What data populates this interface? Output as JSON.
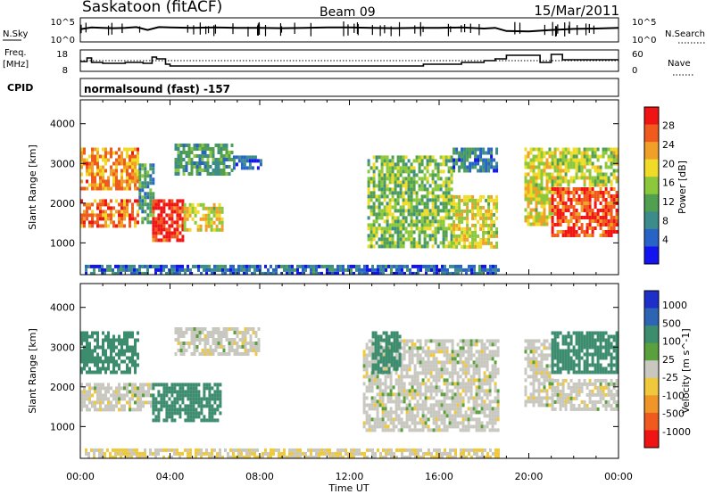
{
  "header": {
    "station": "Saskatoon (fitACF)",
    "beam": "Beam 09",
    "date": "15/Mar/2011"
  },
  "noise_panel": {
    "left_label": "N.Sky",
    "left_ticks": [
      "10^5",
      "10^0"
    ],
    "right_label": "N.Search",
    "right_ticks": [
      "10^5",
      "10^0"
    ]
  },
  "freq_panel": {
    "left_label_1": "Freq.",
    "left_label_2": "[MHz]",
    "left_ticks": [
      "18",
      "8"
    ],
    "right_label": "Nave",
    "right_ticks": [
      "60",
      "0"
    ]
  },
  "cpid": {
    "label": "CPID",
    "value": "normalsound (fast) -157"
  },
  "x_axis": {
    "label": "Time UT",
    "ticks": [
      "00:00",
      "04:00",
      "08:00",
      "12:00",
      "16:00",
      "20:00",
      "00:00"
    ]
  },
  "chart_data": [
    {
      "type": "line",
      "title": "",
      "x_hours": [
        0,
        0.5,
        1,
        1.5,
        2,
        2.5,
        3,
        3.5,
        4,
        5,
        6,
        7,
        8,
        9,
        10,
        11,
        12,
        13,
        14,
        15,
        16,
        17,
        18,
        18.5,
        19,
        20,
        21,
        22,
        23,
        24
      ],
      "series": [
        {
          "name": "N.Sky",
          "values_log10": [
            2.8,
            3.3,
            3.2,
            3.1,
            3.2,
            3.4,
            2.6,
            3.4,
            3.3,
            3.2,
            3.3,
            3.2,
            3.2,
            3.1,
            3.2,
            3.3,
            3.3,
            3.2,
            3.1,
            3.2,
            3.2,
            3.3,
            3.0,
            3.2,
            2.3,
            2.2,
            2.6,
            2.9,
            3.0,
            3.2
          ]
        }
      ],
      "ylim_log10": [
        0,
        5
      ]
    },
    {
      "type": "line",
      "title": "",
      "x_hours": [
        0,
        0.3,
        0.5,
        1,
        2,
        2.8,
        3.2,
        3.4,
        3.8,
        4,
        8,
        12,
        15,
        15.3,
        16,
        16.5,
        17,
        18,
        18.5,
        19,
        20,
        20.5,
        21,
        21.5,
        22,
        22.5,
        23,
        24
      ],
      "series": [
        {
          "name": "Freq.",
          "values_MHz": [
            12.5,
            14.5,
            12,
            11.5,
            12,
            11.5,
            15,
            14,
            11,
            10,
            10,
            10,
            10,
            11,
            11,
            11,
            12,
            13,
            14,
            16,
            16,
            12,
            16.5,
            13.5,
            13.5,
            13.5,
            13.5,
            13.5
          ]
        },
        {
          "name": "Nave",
          "values": [
            30,
            30,
            30,
            30,
            30,
            30,
            30,
            30,
            30,
            30,
            30,
            30,
            30,
            30,
            30,
            30,
            30,
            30,
            30,
            30,
            30,
            30,
            30,
            30,
            30,
            30,
            30,
            30
          ]
        }
      ],
      "ylim_MHz": [
        8,
        18
      ],
      "ylim_nave": [
        0,
        60
      ]
    },
    {
      "type": "heatmap",
      "quantity": "Power",
      "xlim_hours": [
        0,
        24
      ],
      "ylabel": "Slant Range [km]",
      "yticks": [
        "1000",
        "2000",
        "3000",
        "4000"
      ],
      "ylim": [
        200,
        4600
      ],
      "colorbar": {
        "label": "Power [dB]",
        "ticks": [
          "4",
          "8",
          "12",
          "16",
          "20",
          "24",
          "28"
        ],
        "range": [
          0,
          30
        ],
        "colors": [
          "#1414f0",
          "#2864c8",
          "#3c8c8c",
          "#50a050",
          "#8cc83c",
          "#f0dc28",
          "#f0a028",
          "#f05a1e",
          "#f01414"
        ]
      },
      "regions": [
        {
          "t": [
            0.0,
            2.6
          ],
          "r": [
            2400,
            3400
          ],
          "v": 22
        },
        {
          "t": [
            0.0,
            2.6
          ],
          "r": [
            1400,
            2100
          ],
          "v": 24
        },
        {
          "t": [
            2.6,
            3.2
          ],
          "r": [
            1500,
            3000
          ],
          "v": 10
        },
        {
          "t": [
            3.2,
            4.6
          ],
          "r": [
            1100,
            2100
          ],
          "v": 28
        },
        {
          "t": [
            4.6,
            6.3
          ],
          "r": [
            1300,
            2000
          ],
          "v": 18
        },
        {
          "t": [
            4.2,
            6.8
          ],
          "r": [
            2700,
            3500
          ],
          "v": 10
        },
        {
          "t": [
            6.8,
            8.0
          ],
          "r": [
            2900,
            3200
          ],
          "v": 6
        },
        {
          "t": [
            12.8,
            16.6
          ],
          "r": [
            900,
            3200
          ],
          "v": 14
        },
        {
          "t": [
            16.6,
            18.6
          ],
          "r": [
            900,
            2200
          ],
          "v": 18
        },
        {
          "t": [
            16.6,
            18.6
          ],
          "r": [
            2800,
            3400
          ],
          "v": 8
        },
        {
          "t": [
            19.8,
            21.0
          ],
          "r": [
            1500,
            3400
          ],
          "v": 18
        },
        {
          "t": [
            21.0,
            24.0
          ],
          "r": [
            1200,
            2400
          ],
          "v": 26
        },
        {
          "t": [
            21.0,
            24.0
          ],
          "r": [
            2500,
            3400
          ],
          "v": 16
        },
        {
          "t": [
            0.2,
            18.6
          ],
          "r": [
            200,
            450
          ],
          "v": 6
        }
      ]
    },
    {
      "type": "heatmap",
      "quantity": "Velocity",
      "xlim_hours": [
        0,
        24
      ],
      "ylabel": "Slant Range [km]",
      "yticks": [
        "1000",
        "2000",
        "3000",
        "4000"
      ],
      "ylim": [
        200,
        4600
      ],
      "colorbar": {
        "label": "Velocity [m s^-1]",
        "ticks": [
          "1000",
          "500",
          "100",
          "25",
          "-25",
          "-100",
          "-500",
          "-1000"
        ],
        "colors": [
          "#1e2ec8",
          "#2e64b4",
          "#3c8c6e",
          "#5aa03c",
          "#c8c8c0",
          "#f0c83c",
          "#f09628",
          "#f05a1e",
          "#f01414"
        ]
      },
      "regions": [
        {
          "t": [
            0.0,
            2.6
          ],
          "r": [
            2400,
            3400
          ],
          "v": 100
        },
        {
          "t": [
            0.0,
            3.2
          ],
          "r": [
            1400,
            2100
          ],
          "v": 0
        },
        {
          "t": [
            3.2,
            6.3
          ],
          "r": [
            1200,
            2100
          ],
          "v": 100
        },
        {
          "t": [
            4.2,
            8.0
          ],
          "r": [
            2800,
            3500
          ],
          "v": 0
        },
        {
          "t": [
            12.6,
            18.6
          ],
          "r": [
            900,
            3200
          ],
          "v": 0
        },
        {
          "t": [
            13.0,
            14.2
          ],
          "r": [
            2400,
            3400
          ],
          "v": 100
        },
        {
          "t": [
            19.8,
            21.0
          ],
          "r": [
            1500,
            3200
          ],
          "v": 0
        },
        {
          "t": [
            21.0,
            24.0
          ],
          "r": [
            1400,
            2200
          ],
          "v": 0
        },
        {
          "t": [
            21.0,
            24.0
          ],
          "r": [
            2400,
            3400
          ],
          "v": 100
        },
        {
          "t": [
            0.2,
            18.6
          ],
          "r": [
            200,
            450
          ],
          "v": -25
        }
      ]
    }
  ]
}
